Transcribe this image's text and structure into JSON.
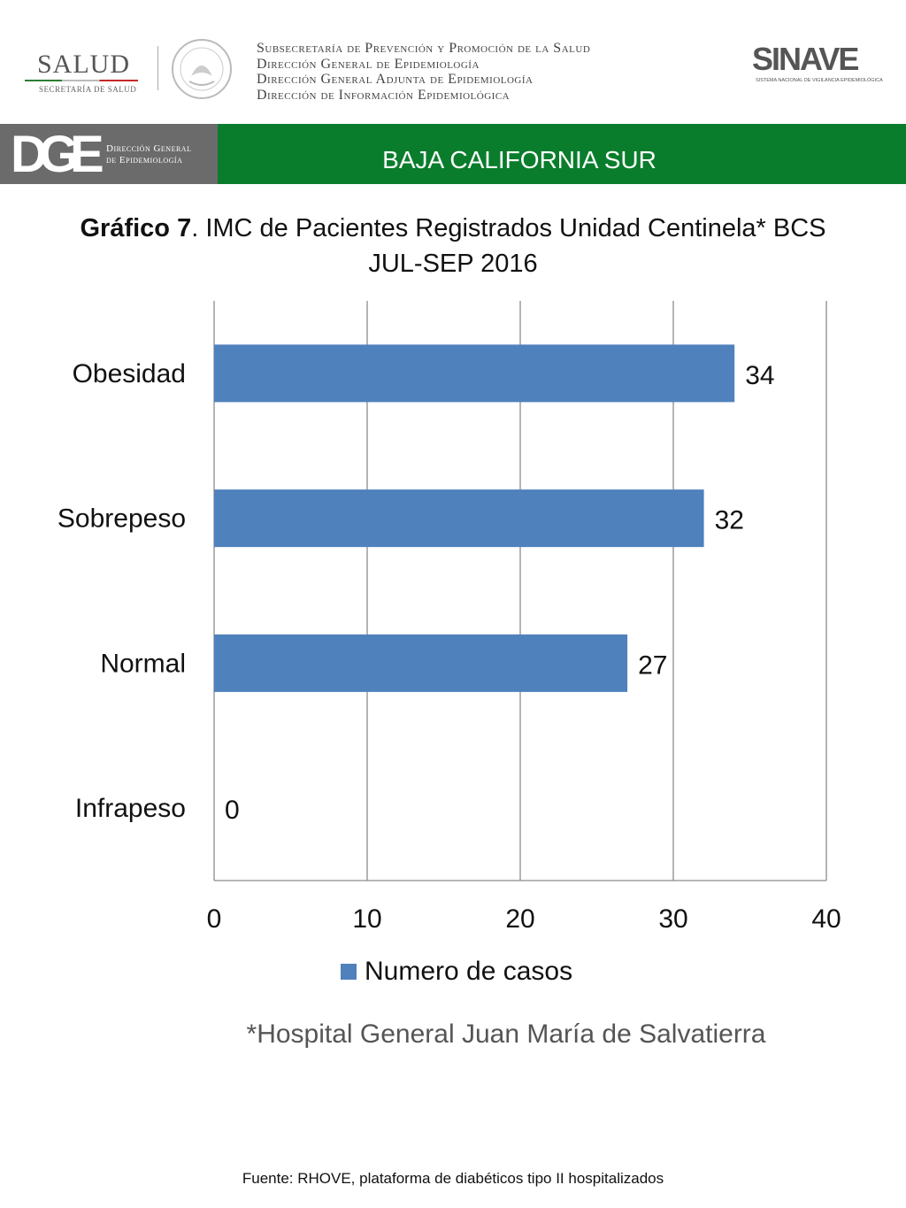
{
  "header": {
    "salud_logo_word": "SALUD",
    "salud_logo_sub": "SECRETARÍA DE SALUD",
    "subsecretaria_lines": [
      "Subsecretaría de Prevención y Promoción de la Salud",
      "Dirección General de Epidemiología",
      "Dirección General Adjunta de Epidemiología",
      "Dirección de Información Epidemiológica"
    ],
    "sinave_word": "SINAVE",
    "sinave_sub": "SISTEMA NACIONAL DE VIGILANCIA EPIDEMIOLÓGICA"
  },
  "band": {
    "dge_letters": "DGE",
    "dge_text_line1": "Dirección General",
    "dge_text_line2": "de Epidemiología",
    "state": "BAJA CALIFORNIA SUR",
    "color": "#0a7d2c"
  },
  "chart_title": {
    "bold": "Gráfico 7",
    "rest": ". IMC de Pacientes Registrados Unidad Centinela* BCS",
    "line2": "JUL-SEP 2016"
  },
  "chart_data": {
    "type": "bar",
    "orientation": "horizontal",
    "categories": [
      "Obesidad",
      "Sobrepeso",
      "Normal",
      "Infrapeso"
    ],
    "series": [
      {
        "name": "Numero de casos",
        "values": [
          34,
          32,
          27,
          0
        ],
        "color": "#4f81bd"
      }
    ],
    "xlim": [
      0,
      40
    ],
    "xticks": [
      0,
      10,
      20,
      30,
      40
    ],
    "grid": "vertical",
    "legend": "bottom",
    "data_labels": true
  },
  "footnote": "*Hospital General Juan María de Salvatierra",
  "source": "Fuente: RHOVE, plataforma de diabéticos tipo II hospitalizados"
}
